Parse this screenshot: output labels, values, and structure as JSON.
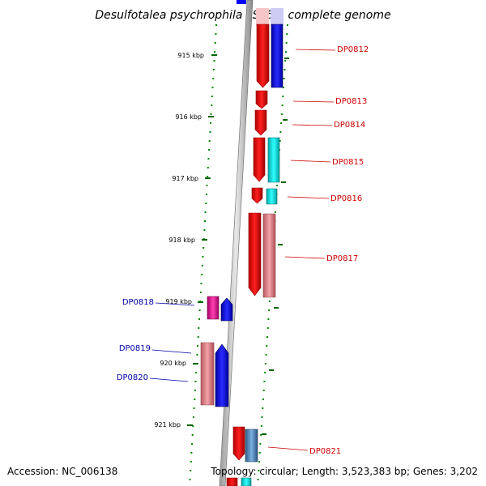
{
  "title": "Desulfotalea psychrophila LSv54, complete genome",
  "accession": "Accession: NC_006138",
  "topology": "Topology: circular; Length: 3,523,383 bp; Genes: 3,202",
  "ticks": [
    "915 kbp",
    "916 kbp",
    "917 kbp",
    "918 kbp",
    "919 kbp",
    "920 kbp",
    "921 kbp"
  ],
  "genes_right": [
    "DP0812",
    "DP0813",
    "DP0814",
    "DP0815",
    "DP0816",
    "DP0817",
    "DP0821"
  ],
  "genes_left": [
    "DP0818",
    "DP0819",
    "DP0820"
  ],
  "colors": {
    "red": "#ff0000",
    "blue": "#0000ff",
    "cyan": "#00e5e5",
    "pink": "#e6808a",
    "magenta": "#e0148c",
    "steel": "#4f86b8",
    "tick_green": "#006600",
    "backbone": "#808080",
    "right_label": "#cc0000",
    "left_label": "#0000aa"
  }
}
